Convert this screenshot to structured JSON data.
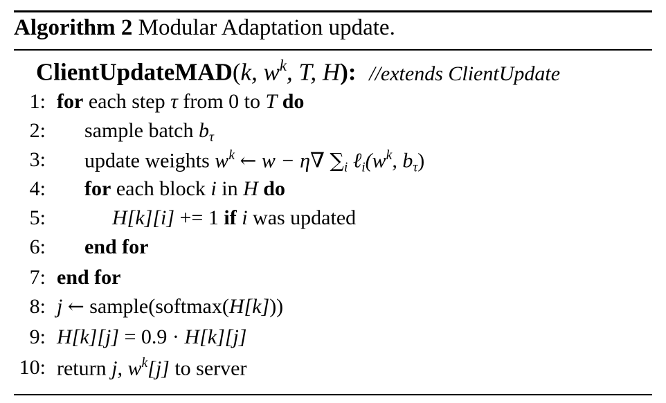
{
  "caption": {
    "label": "Algorithm 2",
    "title": "Modular Adaptation update."
  },
  "header": {
    "name": "ClientUpdateMAD",
    "args_open": "(",
    "args": "k, w",
    "args_sup": "k",
    "args_rest": ", T, H",
    "args_close": "):",
    "comment": "//extends ClientUpdate"
  },
  "lines": [
    {
      "n": "1:",
      "kw_for": "for",
      "t1": "each step",
      "tau": "τ",
      "t2": "from 0 to",
      "T": "T",
      "kw_do": "do"
    },
    {
      "n": "2:",
      "t1": "sample batch",
      "b": "b",
      "tau": "τ"
    },
    {
      "n": "3:",
      "t1": "update weights",
      "w": "w",
      "k": "k",
      "arrow": "←",
      "expr": "w − η∇",
      "sum": "∑",
      "i": "i",
      "ell": "ℓ",
      "open": "(w",
      "rest": ", b",
      "tau": "τ",
      "close": ")"
    },
    {
      "n": "4:",
      "kw_for": "for",
      "t1": "each block",
      "i": "i",
      "t2": "in",
      "H": "H",
      "kw_do": "do"
    },
    {
      "n": "5:",
      "expr": "H[k][i]",
      "t1": "+= 1",
      "kw_if": "if",
      "i": "i",
      "t2": "was updated"
    },
    {
      "n": "6:",
      "kw": "end for"
    },
    {
      "n": "7:",
      "kw": "end for"
    },
    {
      "n": "8:",
      "j": "j",
      "arrow": "←",
      "t1": "sample(softmax(",
      "expr": "H[k]",
      "t2": "))"
    },
    {
      "n": "9:",
      "expr1": "H[k][j]",
      "eq": "= 0.9 ·",
      "expr2": "H[k][j]"
    },
    {
      "n": "10:",
      "t1": "return",
      "expr": "j, w",
      "k": "k",
      "expr2": "[j]",
      "t2": "to server"
    }
  ]
}
